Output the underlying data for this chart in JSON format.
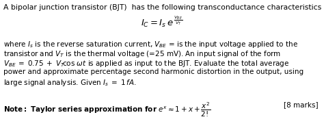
{
  "title_line": "A bipolar junction transistor (BJT)  has the following transconductance characteristics",
  "body_lines": [
    "where $I_s$ is the reverse saturation current, $V_{BE}$ = is the input voltage applied to the",
    "transistor and $V_T$ is the thermal voltage (=25 mV). An input signal of the form",
    "$V_{BE}\\;=\\;0.75\\;+\\;V_T\\!\\cos\\,\\omega t$ is applied as input to the BJT. Evaluate the total average",
    "power and approximate percentage second harmonic distortion in the output, using",
    "large signal analysis. Given $I_s\\;=\\;1\\,fA$."
  ],
  "marks_text": "[8 marks]",
  "background_color": "#ffffff",
  "text_color": "#000000",
  "fontsize_title": 7.8,
  "fontsize_body": 7.5,
  "fontsize_formula_main": 9.5,
  "fontsize_formula_super": 6.5,
  "fontsize_note": 7.5,
  "fig_width": 4.74,
  "fig_height": 1.87,
  "dpi": 100
}
